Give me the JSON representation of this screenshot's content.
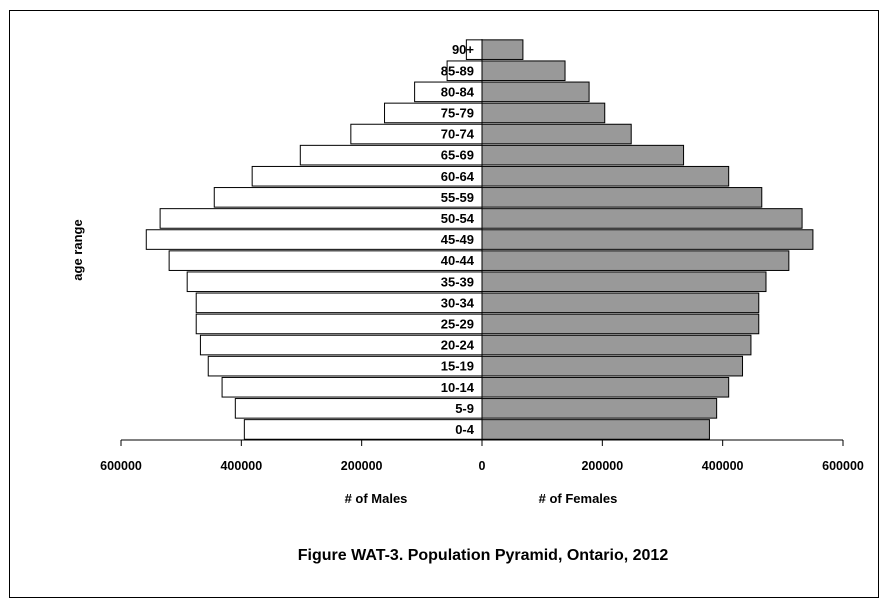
{
  "chart_data": {
    "type": "bar",
    "orientation": "horizontal",
    "layout": "population-pyramid",
    "caption": "Figure WAT-3.  Population Pyramid, Ontario, 2012",
    "ylabel": "age range",
    "xlabel_left": "# of Males",
    "xlabel_right": "# of  Females",
    "categories": [
      "0-4",
      "5-9",
      "10-14",
      "15-19",
      "20-24",
      "25-29",
      "30-34",
      "35-39",
      "40-44",
      "45-49",
      "50-54",
      "55-59",
      "60-64",
      "65-69",
      "70-74",
      "75-79",
      "80-84",
      "85-89",
      "90+"
    ],
    "series": [
      {
        "name": "Males",
        "values": [
          395000,
          410000,
          432000,
          455000,
          468000,
          475000,
          475000,
          490000,
          520000,
          558000,
          535000,
          445000,
          382000,
          302000,
          218000,
          162000,
          112000,
          58000,
          26000
        ],
        "color": "#ffffff"
      },
      {
        "name": "Females",
        "values": [
          378000,
          390000,
          410000,
          433000,
          447000,
          460000,
          460000,
          472000,
          510000,
          550000,
          532000,
          465000,
          410000,
          335000,
          248000,
          204000,
          178000,
          138000,
          68000
        ],
        "color": "#999999"
      }
    ],
    "xlim": [
      -600000,
      600000
    ],
    "x_ticks": [
      -600000,
      -400000,
      -200000,
      0,
      200000,
      400000,
      600000
    ],
    "x_tick_labels": [
      "600000",
      "400000",
      "200000",
      "0",
      "200000",
      "400000",
      "600000"
    ],
    "grid": false,
    "legend": "none"
  }
}
